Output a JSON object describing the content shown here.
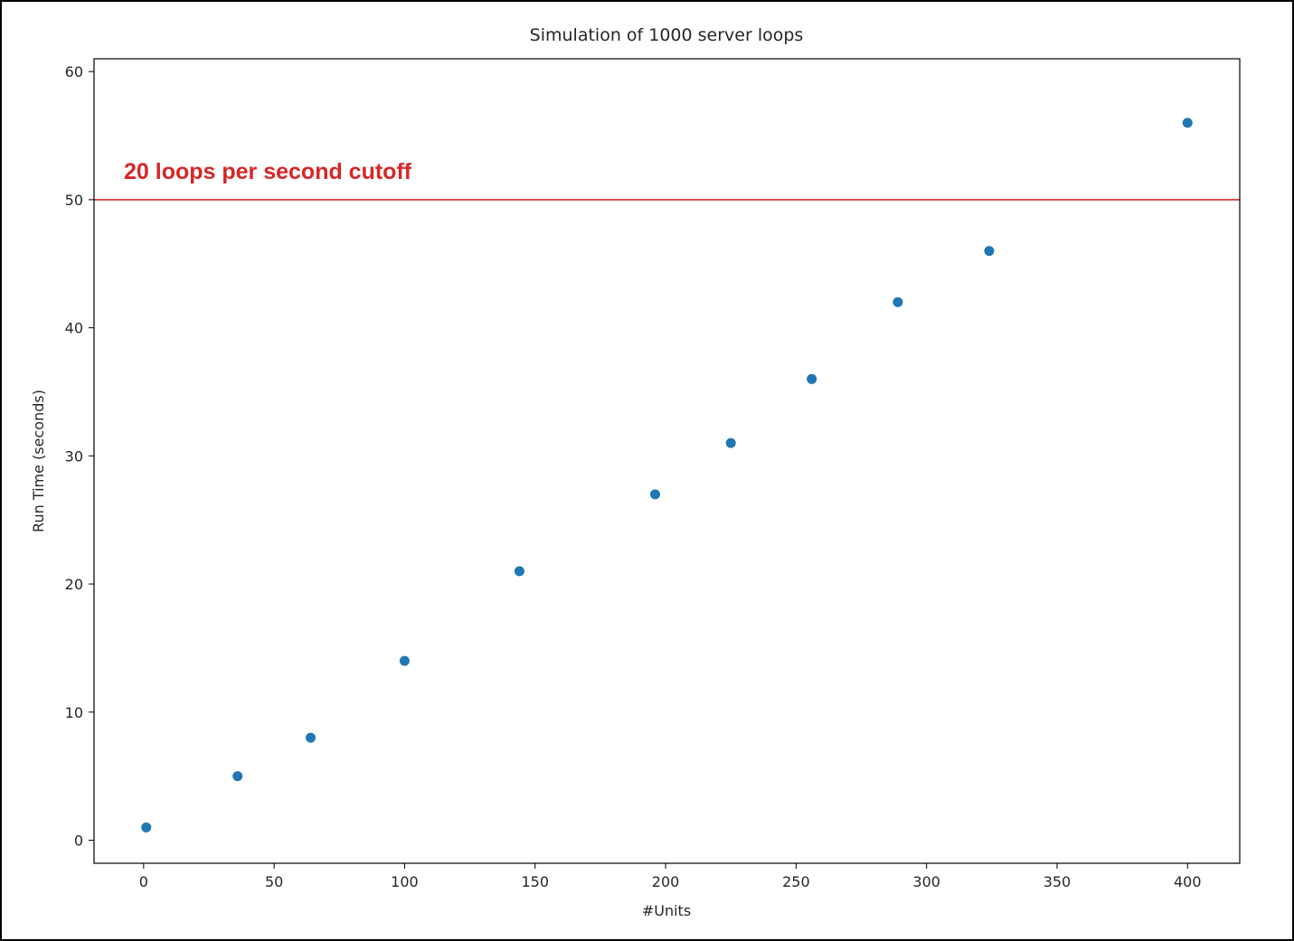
{
  "chart_data": {
    "type": "scatter",
    "title": "Simulation of 1000 server loops",
    "xlabel": "#Units",
    "ylabel": "Run Time (seconds)",
    "xlim": [
      -19,
      420
    ],
    "ylim": [
      -1.8,
      61
    ],
    "xticks": [
      0,
      50,
      100,
      150,
      200,
      250,
      300,
      350,
      400
    ],
    "yticks": [
      0,
      10,
      20,
      30,
      40,
      50,
      60
    ],
    "grid": false,
    "legend": "none",
    "series": [
      {
        "color": "#1f77b4",
        "x": [
          1,
          36,
          64,
          100,
          144,
          196,
          225,
          256,
          289,
          324,
          400
        ],
        "y": [
          1,
          5,
          8,
          14,
          21,
          27,
          31,
          36,
          42,
          46,
          56
        ]
      }
    ],
    "hlines": [
      {
        "y": 50,
        "color": "#d62728"
      }
    ],
    "annotations": [
      {
        "text": "20 loops per second cutoff",
        "color": "#d62728"
      }
    ]
  }
}
